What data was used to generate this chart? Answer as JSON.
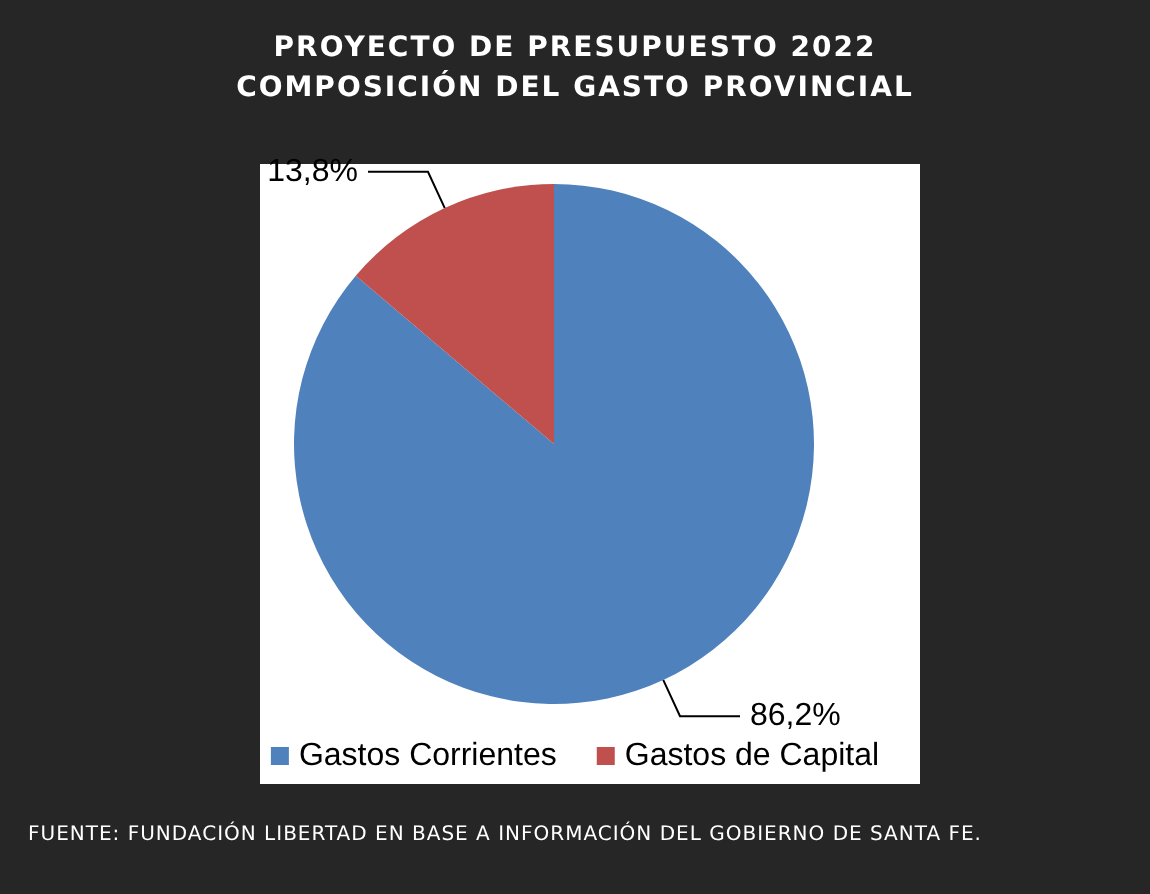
{
  "chart_data": {
    "type": "pie",
    "title": "PROYECTO DE PRESUPUESTO 2022\nCOMPOSICIÓN DEL GASTO PROVINCIAL",
    "categories": [
      "Gastos Corrientes",
      "Gastos de Capital"
    ],
    "values": [
      86.2,
      13.8
    ],
    "value_labels": [
      "86,2%",
      "13,8%"
    ],
    "colors": [
      "#4f81bd",
      "#c0504d"
    ],
    "legend": "bottom",
    "annotations": [
      "FUENTE: FUNDACIÓN LIBERTAD EN BASE A INFORMACIÓN DEL GOBIERNO DE SANTA FE."
    ]
  }
}
